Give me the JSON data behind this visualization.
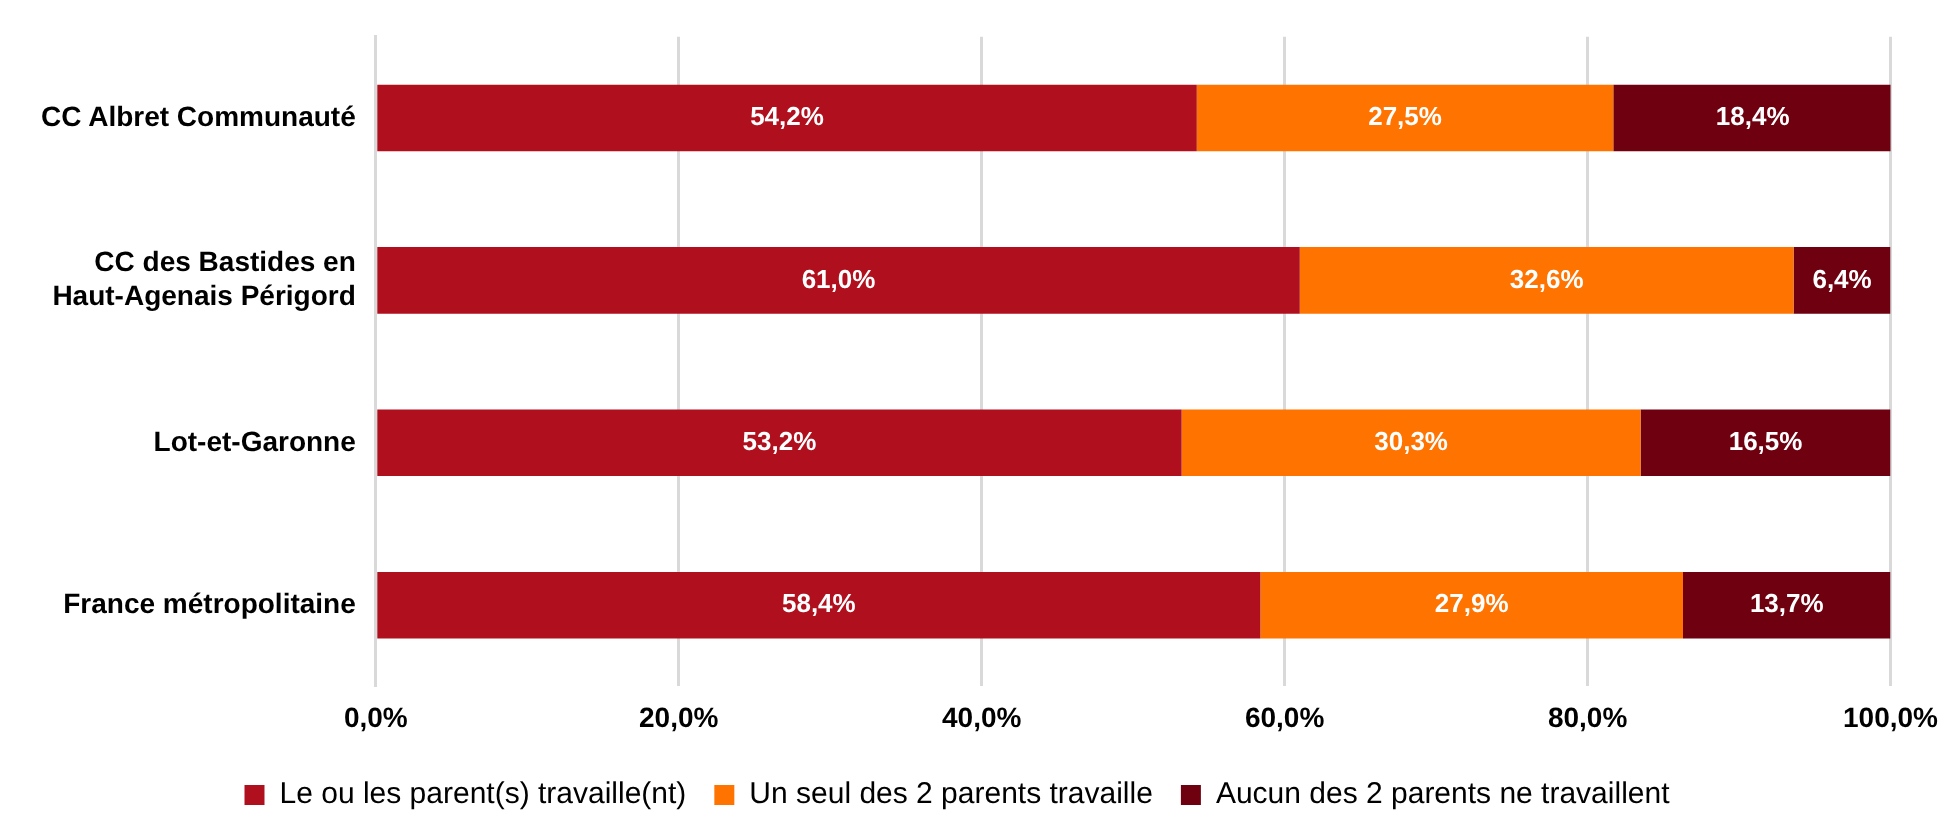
{
  "chart_data": {
    "type": "bar",
    "orientation": "horizontal",
    "stacked": true,
    "categories": [
      "CC Albret Communauté",
      "CC des Bastides en\nHaut-Agenais Périgord",
      "Lot-et-Garonne",
      "France métropolitaine"
    ],
    "series": [
      {
        "name": "Le ou les parent(s) travaille(nt)",
        "color": "#b0101e",
        "values": [
          54.2,
          61.0,
          53.2,
          58.4
        ],
        "value_labels": [
          "54,2%",
          "61,0%",
          "53,2%",
          "58,4%"
        ]
      },
      {
        "name": "Un seul des 2 parents travaille",
        "color": "#ff7300",
        "values": [
          27.5,
          32.6,
          30.3,
          27.9
        ],
        "value_labels": [
          "27,5%",
          "32,6%",
          "30,3%",
          "27,9%"
        ]
      },
      {
        "name": "Aucun des 2 parents ne travaillent",
        "color": "#6e0010",
        "values": [
          18.4,
          6.4,
          16.5,
          13.7
        ],
        "value_labels": [
          "18,4%",
          "6,4%",
          "16,5%",
          "13,7%"
        ]
      }
    ],
    "xlim": [
      0,
      100
    ],
    "xticks": [
      {
        "value": 0,
        "label": "0,0%"
      },
      {
        "value": 20,
        "label": "20,0%"
      },
      {
        "value": 40,
        "label": "40,0%"
      },
      {
        "value": 60,
        "label": "60,0%"
      },
      {
        "value": 80,
        "label": "80,0%"
      },
      {
        "value": 100,
        "label": "100,0%"
      }
    ],
    "grid": "x",
    "legend": "bottom"
  }
}
